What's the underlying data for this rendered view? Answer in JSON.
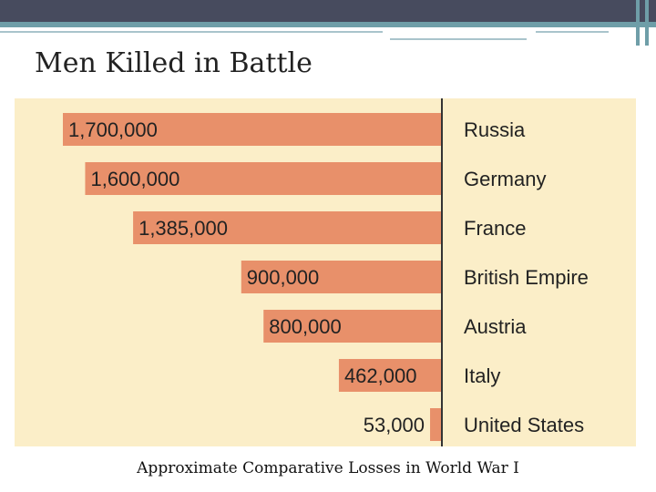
{
  "slide": {
    "title": "Men Killed in Battle",
    "caption": "Approximate Comparative Losses in World War I"
  },
  "colors": {
    "bar": "#e8906a",
    "panel": "#fbeec8",
    "axis": "#333333",
    "text": "#222222"
  },
  "chart_data": {
    "type": "bar",
    "orientation": "horizontal",
    "title": "Men Killed in Battle",
    "xlabel": "",
    "ylabel": "",
    "xlim": [
      0,
      1700000
    ],
    "categories": [
      "Russia",
      "Germany",
      "France",
      "British Empire",
      "Austria",
      "Italy",
      "United States"
    ],
    "values": [
      1700000,
      1600000,
      1385000,
      900000,
      800000,
      462000,
      53000
    ],
    "data_labels": [
      "1,700,000",
      "1,600,000",
      "1,385,000",
      "900,000",
      "800,000",
      "462,000",
      "53,000"
    ]
  }
}
